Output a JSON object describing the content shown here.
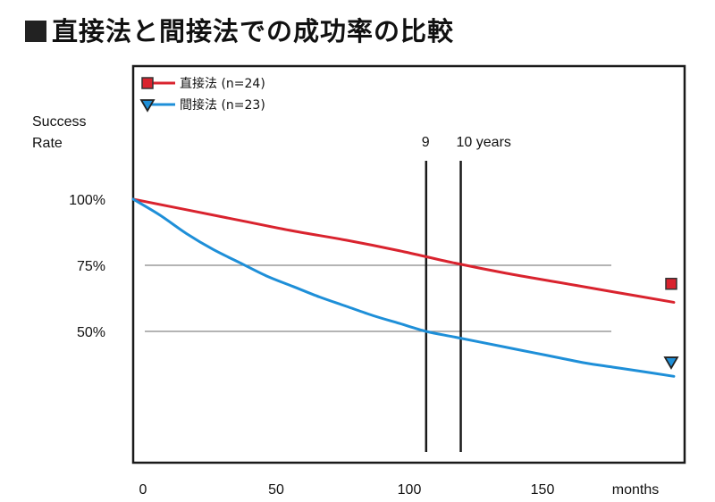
{
  "title": "■直接法と間接法での成功率の比較",
  "chart_data": {
    "type": "line",
    "ylabel_line1": "Success",
    "ylabel_line2": "Rate",
    "xlabel": "months",
    "x_ticks": [
      0,
      50,
      100,
      150
    ],
    "x_tick_labels": [
      "0",
      "50",
      "100",
      "150"
    ],
    "y_ticks": [
      100,
      75,
      50
    ],
    "y_tick_labels": [
      "100%",
      "75%",
      "50%"
    ],
    "xlim": [
      0,
      205
    ],
    "ylim": [
      17,
      150
    ],
    "gridlines_y": [
      75,
      50
    ],
    "grid": false,
    "legend_position": "top-left",
    "series": [
      {
        "name": "直接法 (n=24)",
        "color": "#d9232e",
        "marker": "square",
        "x": [
          0,
          20,
          40,
          60,
          80,
          100,
          120,
          140,
          160,
          180,
          203
        ],
        "y": [
          100,
          96,
          92,
          88,
          84.5,
          80.5,
          76,
          72,
          68.5,
          65,
          61
        ]
      },
      {
        "name": "間接法 (n=23)",
        "color": "#1e8fd8",
        "marker": "triangle-down",
        "x": [
          0,
          10,
          20,
          30,
          40,
          50,
          60,
          70,
          80,
          90,
          100,
          110,
          120,
          130,
          140,
          150,
          160,
          170,
          180,
          190,
          203
        ],
        "y": [
          100,
          94,
          87,
          81,
          76,
          71,
          67,
          63,
          59.5,
          56,
          53,
          50,
          48,
          46,
          44,
          42,
          40,
          38,
          36.5,
          35,
          33
        ]
      }
    ],
    "markers_after_end": [
      {
        "series": 0,
        "y": 68
      },
      {
        "series": 1,
        "y": 38.5
      }
    ],
    "annotations": [
      {
        "x": 110,
        "label": "9"
      },
      {
        "x": 123,
        "label": "10 years"
      }
    ]
  }
}
